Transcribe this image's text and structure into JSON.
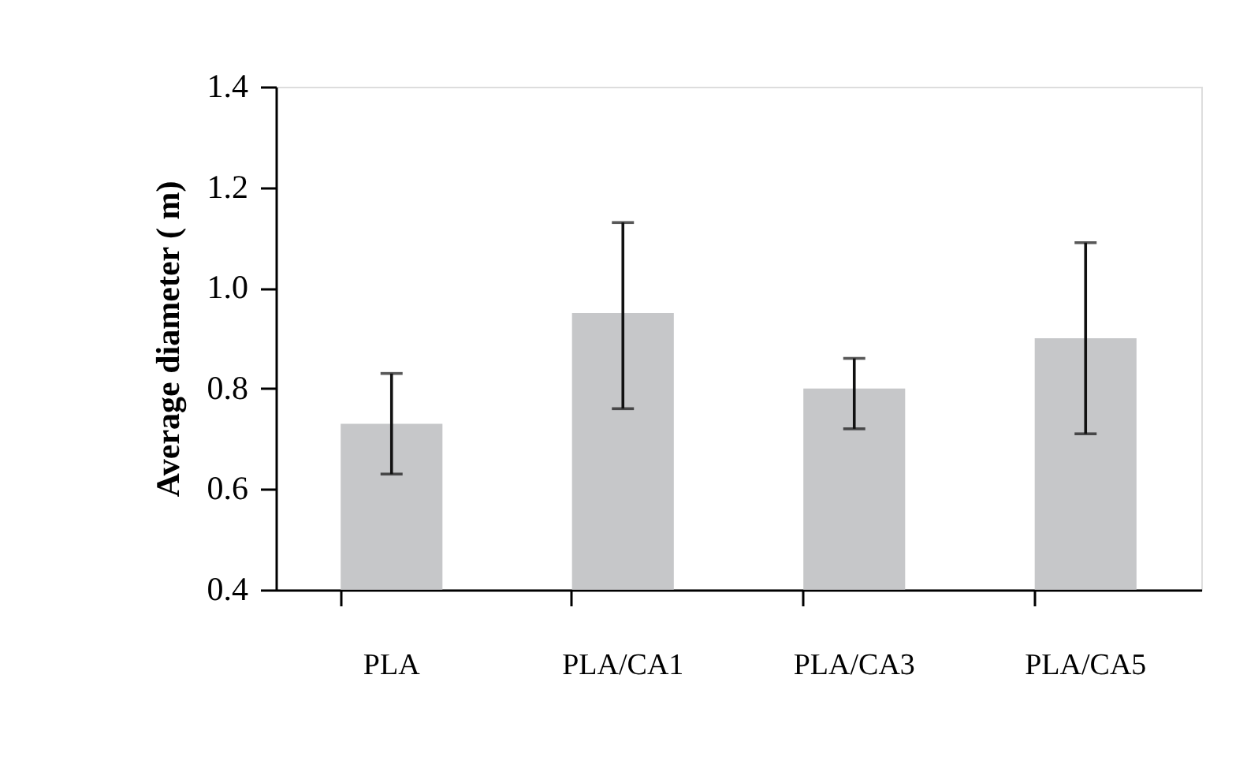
{
  "chart_data": {
    "type": "bar",
    "ylabel": "Average diameter ( m)",
    "categories": [
      "PLA",
      "PLA/CA1",
      "PLA/CA3",
      "PLA/CA5"
    ],
    "values": [
      0.73,
      0.95,
      0.8,
      0.9
    ],
    "errors": [
      [
        0.63,
        0.83
      ],
      [
        0.76,
        1.13
      ],
      [
        0.72,
        0.86
      ],
      [
        0.71,
        1.09
      ]
    ],
    "color": "#c6c7c9",
    "ylim": [
      0.4,
      1.4
    ],
    "yticks": [
      {
        "value": 0.4,
        "label": "0.4"
      },
      {
        "value": 0.6,
        "label": "0.6"
      },
      {
        "value": 0.8,
        "label": "0.8"
      },
      {
        "value": 1.0,
        "label": "1.0"
      },
      {
        "value": 1.2,
        "label": "1.2"
      },
      {
        "value": 1.4,
        "label": "1.4"
      }
    ],
    "grid": false
  }
}
